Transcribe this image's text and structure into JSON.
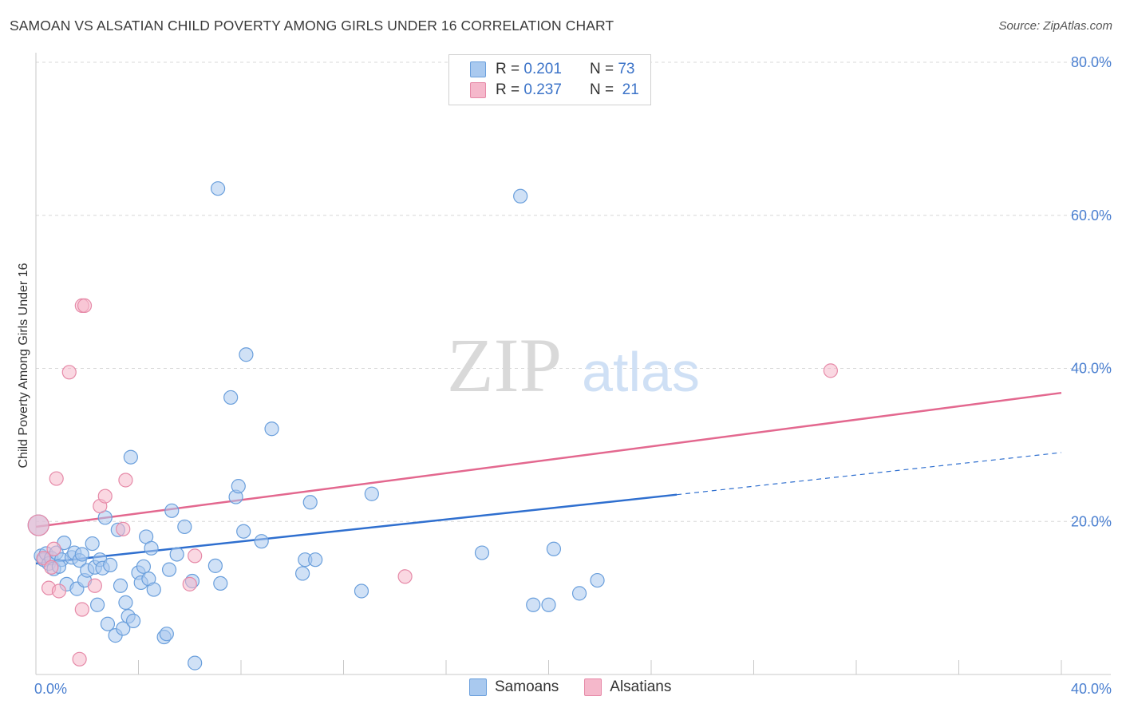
{
  "header": {
    "title": "SAMOAN VS ALSATIAN CHILD POVERTY AMONG GIRLS UNDER 16 CORRELATION CHART",
    "source": "Source: ZipAtlas.com"
  },
  "legend": {
    "rows": [
      {
        "r_label": "R =",
        "r_value": "0.201",
        "n_label": "N =",
        "n_value": "73",
        "color": "#a9c9ef"
      },
      {
        "r_label": "R =",
        "r_value": "0.237",
        "n_label": "N =",
        "n_value": "21",
        "color": "#f5b8cb"
      }
    ]
  },
  "watermark": {
    "zip": "ZIP",
    "atlas": "atlas"
  },
  "colors": {
    "samoans_fill": "#a9c9ef",
    "samoans_stroke": "#6a9fdc",
    "samoans_line": "#2f6fcf",
    "alsatians_fill": "#f5b8cb",
    "alsatians_stroke": "#e68aa8",
    "alsatians_line": "#e3688f",
    "axis_label": "#4a7fd0",
    "grid": "#d8d8d8"
  },
  "chart_data": {
    "type": "scatter",
    "title": "SAMOAN VS ALSATIAN CHILD POVERTY AMONG GIRLS UNDER 16 CORRELATION CHART",
    "xlabel": "",
    "ylabel": "Child Poverty Among Girls Under 16",
    "xlim": [
      0,
      40
    ],
    "ylim": [
      0,
      80
    ],
    "x_tick_labels": [
      "0.0%",
      "40.0%"
    ],
    "y_ticks": [
      20,
      40,
      60,
      80
    ],
    "y_tick_labels": [
      "20.0%",
      "40.0%",
      "60.0%",
      "80.0%"
    ],
    "grid": true,
    "legend_position": "top-center",
    "series": [
      {
        "name": "Samoans",
        "r": 0.201,
        "n": 73,
        "trend": {
          "x": [
            0,
            25
          ],
          "y": [
            14.5,
            23.5
          ],
          "dashed_extension": {
            "x": [
              25,
              40
            ],
            "y": [
              23.5,
              29.0
            ]
          }
        },
        "points": [
          [
            0.1,
            19.5
          ],
          [
            0.2,
            15.5
          ],
          [
            0.3,
            15.0
          ],
          [
            0.4,
            15.8
          ],
          [
            0.5,
            14.5
          ],
          [
            0.6,
            15.2
          ],
          [
            0.7,
            13.8
          ],
          [
            0.8,
            15.9
          ],
          [
            1.0,
            15.0
          ],
          [
            1.1,
            17.2
          ],
          [
            1.2,
            11.8
          ],
          [
            1.4,
            15.3
          ],
          [
            1.5,
            15.9
          ],
          [
            1.6,
            11.2
          ],
          [
            1.7,
            14.9
          ],
          [
            1.8,
            15.7
          ],
          [
            1.9,
            12.3
          ],
          [
            2.0,
            13.6
          ],
          [
            2.2,
            17.1
          ],
          [
            2.3,
            14.0
          ],
          [
            2.4,
            9.1
          ],
          [
            2.5,
            15.0
          ],
          [
            2.6,
            13.9
          ],
          [
            2.7,
            20.5
          ],
          [
            2.8,
            6.6
          ],
          [
            2.9,
            14.3
          ],
          [
            3.1,
            5.1
          ],
          [
            3.2,
            18.9
          ],
          [
            3.3,
            11.6
          ],
          [
            3.4,
            6.0
          ],
          [
            3.5,
            9.4
          ],
          [
            3.6,
            7.6
          ],
          [
            3.7,
            28.4
          ],
          [
            3.8,
            7.0
          ],
          [
            4.0,
            13.3
          ],
          [
            4.1,
            12.0
          ],
          [
            4.2,
            14.1
          ],
          [
            4.3,
            18.0
          ],
          [
            4.4,
            12.5
          ],
          [
            4.5,
            16.5
          ],
          [
            4.6,
            11.1
          ],
          [
            5.0,
            4.9
          ],
          [
            5.1,
            5.3
          ],
          [
            5.2,
            13.7
          ],
          [
            5.3,
            21.4
          ],
          [
            5.5,
            15.7
          ],
          [
            5.8,
            19.3
          ],
          [
            6.1,
            12.2
          ],
          [
            6.2,
            1.5
          ],
          [
            7.0,
            14.2
          ],
          [
            7.1,
            63.5
          ],
          [
            7.2,
            11.9
          ],
          [
            7.6,
            36.2
          ],
          [
            7.8,
            23.2
          ],
          [
            7.9,
            24.6
          ],
          [
            8.1,
            18.7
          ],
          [
            8.2,
            41.8
          ],
          [
            8.8,
            17.4
          ],
          [
            9.2,
            32.1
          ],
          [
            10.4,
            13.2
          ],
          [
            10.5,
            15.0
          ],
          [
            10.7,
            22.5
          ],
          [
            10.9,
            15.0
          ],
          [
            12.7,
            10.9
          ],
          [
            13.1,
            23.6
          ],
          [
            17.4,
            15.9
          ],
          [
            18.9,
            62.5
          ],
          [
            19.4,
            9.1
          ],
          [
            20.0,
            9.1
          ],
          [
            20.2,
            16.4
          ],
          [
            21.2,
            10.6
          ],
          [
            21.9,
            12.3
          ],
          [
            0.9,
            14.1
          ]
        ]
      },
      {
        "name": "Alsatians",
        "r": 0.237,
        "n": 21,
        "trend": {
          "x": [
            0,
            40
          ],
          "y": [
            19.3,
            36.8
          ]
        },
        "points": [
          [
            0.1,
            19.5
          ],
          [
            0.3,
            15.2
          ],
          [
            0.5,
            11.3
          ],
          [
            0.6,
            14.0
          ],
          [
            0.7,
            16.4
          ],
          [
            0.8,
            25.6
          ],
          [
            0.9,
            10.9
          ],
          [
            1.3,
            39.5
          ],
          [
            1.7,
            2.0
          ],
          [
            1.8,
            8.5
          ],
          [
            1.8,
            48.2
          ],
          [
            1.9,
            48.2
          ],
          [
            2.3,
            11.6
          ],
          [
            2.5,
            22.0
          ],
          [
            2.7,
            23.3
          ],
          [
            3.4,
            19.0
          ],
          [
            3.5,
            25.4
          ],
          [
            6.0,
            11.8
          ],
          [
            6.2,
            15.5
          ],
          [
            14.4,
            12.8
          ],
          [
            31.0,
            39.7
          ]
        ]
      }
    ]
  }
}
